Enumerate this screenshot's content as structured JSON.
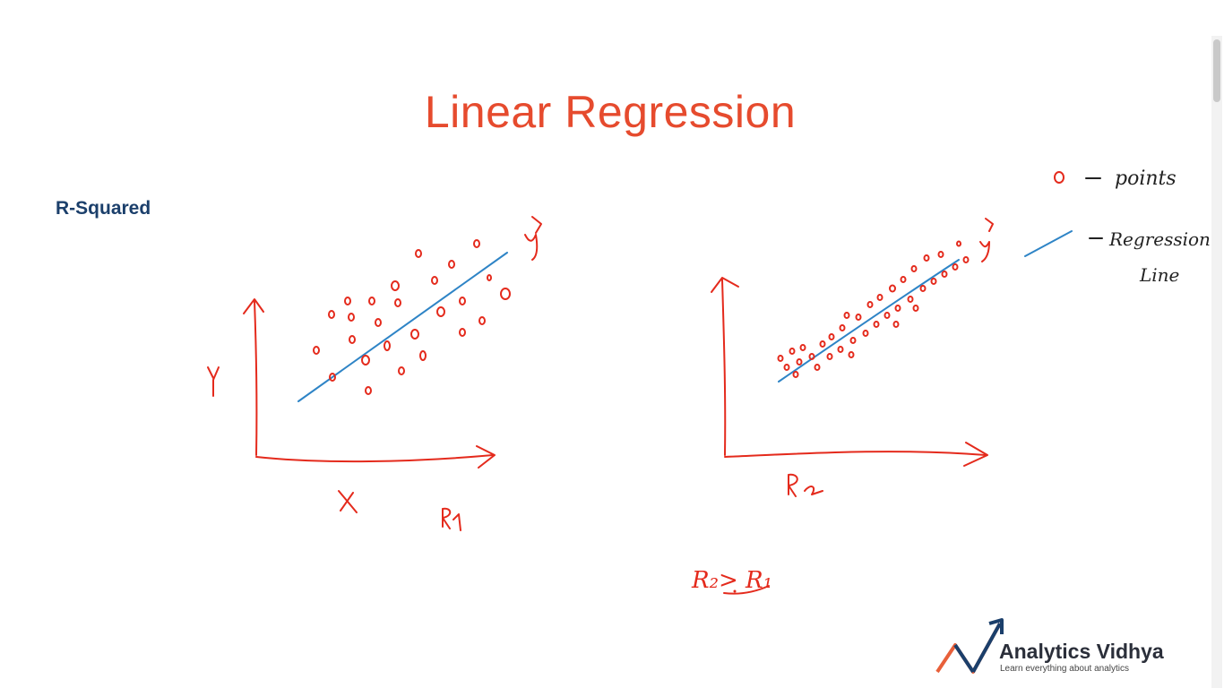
{
  "slide": {
    "title": "Linear Regression",
    "subtitle": "R-Squared"
  },
  "annotations": {
    "legend_points": "o – points",
    "legend_line": "– Regression line",
    "y_axis_left": "y",
    "x_axis_left": "x",
    "yhat_left": "ŷ",
    "yhat_right": "ŷ",
    "label_r1": "R1",
    "label_r2": "R2",
    "comparison": "R2 > R1"
  },
  "branding": {
    "name": "Analytics Vidhya",
    "tagline": "Learn everything about analytics"
  },
  "colors": {
    "title": "#e64b2e",
    "subtitle": "#1b3f6b",
    "ink_red": "#e42a1c",
    "ink_blue": "#2e84c6"
  }
}
